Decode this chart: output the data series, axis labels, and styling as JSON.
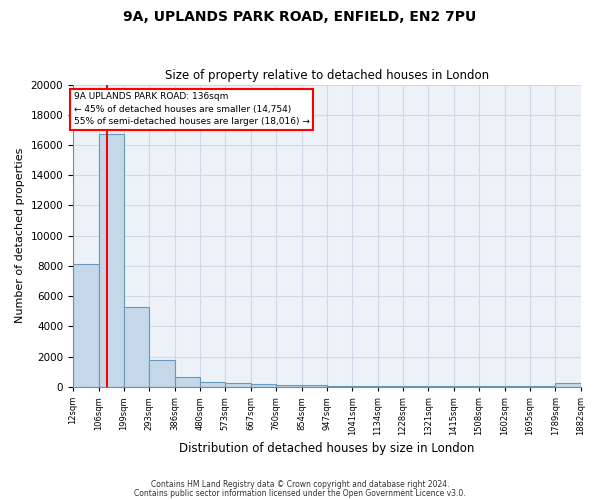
{
  "title_line1": "9A, UPLANDS PARK ROAD, ENFIELD, EN2 7PU",
  "title_line2": "Size of property relative to detached houses in London",
  "xlabel": "Distribution of detached houses by size in London",
  "ylabel": "Number of detached properties",
  "footer_line1": "Contains HM Land Registry data © Crown copyright and database right 2024.",
  "footer_line2": "Contains public sector information licensed under the Open Government Licence v3.0.",
  "annotation_line1": "9A UPLANDS PARK ROAD: 136sqm",
  "annotation_line2": "← 45% of detached houses are smaller (14,754)",
  "annotation_line3": "55% of semi-detached houses are larger (18,016) →",
  "bar_edges": [
    12,
    106,
    199,
    293,
    386,
    480,
    573,
    667,
    760,
    854,
    947,
    1041,
    1134,
    1228,
    1321,
    1415,
    1508,
    1602,
    1695,
    1789,
    1882
  ],
  "bar_heights": [
    8100,
    16700,
    5300,
    1800,
    680,
    340,
    260,
    190,
    140,
    95,
    90,
    75,
    65,
    55,
    48,
    42,
    38,
    32,
    28,
    240
  ],
  "bar_color": "#c5d8ea",
  "bar_edge_color": "#6699bb",
  "property_line_x": 136,
  "property_line_color": "red",
  "ylim": [
    0,
    20000
  ],
  "yticks": [
    0,
    2000,
    4000,
    6000,
    8000,
    10000,
    12000,
    14000,
    16000,
    18000,
    20000
  ],
  "background_color": "#edf2f8",
  "grid_color": "#d0d8e8",
  "annotation_box_color": "red"
}
